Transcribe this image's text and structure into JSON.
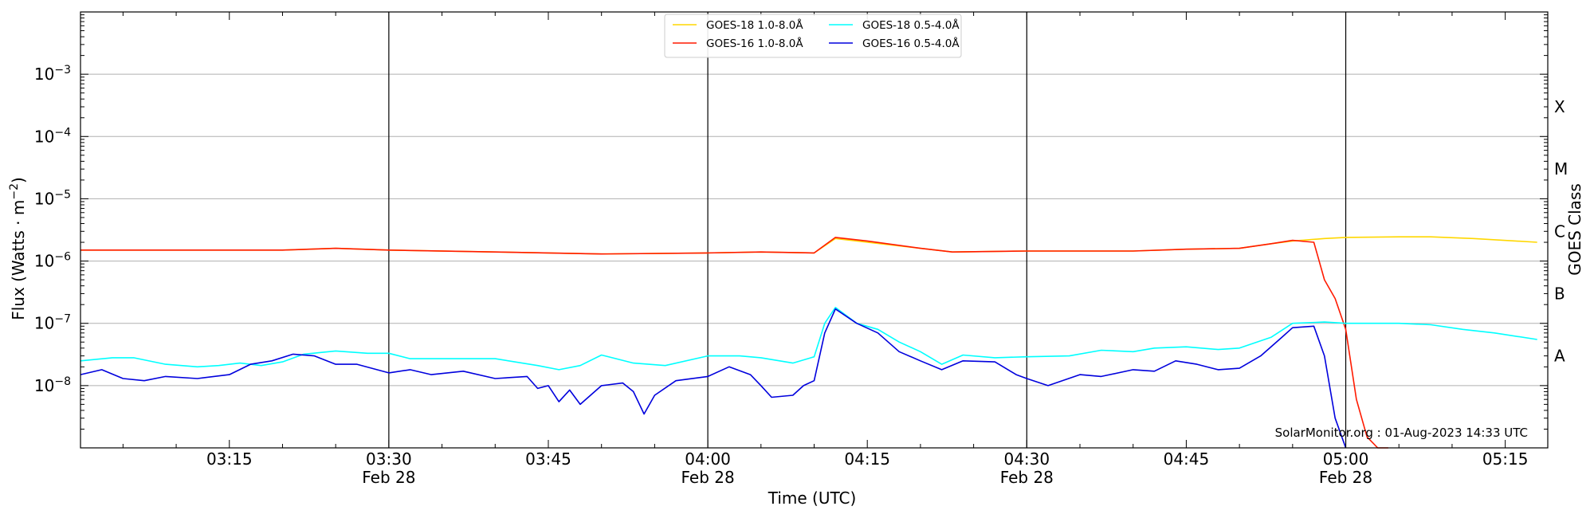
{
  "chart_data": {
    "type": "line",
    "xlabel": "Time (UTC)",
    "ylabel_prefix": "Flux (Watts · m",
    "ylabel_exp": "−2",
    "ylabel_suffix": ")",
    "right_label": "GOES Class",
    "watermark": "SolarMonitor.org : 01-Aug-2023 14:33 UTC",
    "yscale": "log",
    "ylim": [
      1e-09,
      0.01
    ],
    "xlim": [
      "03:01",
      "05:19"
    ],
    "y_ticks": [
      {
        "exp": -8,
        "label_base": "10",
        "label_exp": "−8"
      },
      {
        "exp": -7,
        "label_base": "10",
        "label_exp": "−7"
      },
      {
        "exp": -6,
        "label_base": "10",
        "label_exp": "−6"
      },
      {
        "exp": -5,
        "label_base": "10",
        "label_exp": "−5"
      },
      {
        "exp": -4,
        "label_base": "10",
        "label_exp": "−4"
      },
      {
        "exp": -3,
        "label_base": "10",
        "label_exp": "−3"
      }
    ],
    "x_ticks": [
      {
        "time": "03:15",
        "label": "03:15",
        "sub": ""
      },
      {
        "time": "03:30",
        "label": "03:30",
        "sub": "Feb 28"
      },
      {
        "time": "03:45",
        "label": "03:45",
        "sub": ""
      },
      {
        "time": "04:00",
        "label": "04:00",
        "sub": "Feb 28"
      },
      {
        "time": "04:15",
        "label": "04:15",
        "sub": ""
      },
      {
        "time": "04:30",
        "label": "04:30",
        "sub": "Feb 28"
      },
      {
        "time": "04:45",
        "label": "04:45",
        "sub": ""
      },
      {
        "time": "05:00",
        "label": "05:00",
        "sub": "Feb 28"
      },
      {
        "time": "05:15",
        "label": "05:15",
        "sub": ""
      }
    ],
    "vertical_lines": [
      "03:30",
      "04:00",
      "04:30",
      "05:00"
    ],
    "classes": [
      {
        "label": "A",
        "flux": 3e-08
      },
      {
        "label": "B",
        "flux": 3e-07
      },
      {
        "label": "C",
        "flux": 3e-06
      },
      {
        "label": "M",
        "flux": 3e-05
      },
      {
        "label": "X",
        "flux": 0.0003
      }
    ],
    "grid": "horizontal",
    "legend_position": "top-center",
    "series": [
      {
        "name": "GOES-18 1.0-8.0Å",
        "color": "#ffd700",
        "points": [
          [
            "03:01",
            1.5e-06
          ],
          [
            "03:10",
            1.5e-06
          ],
          [
            "03:20",
            1.5e-06
          ],
          [
            "03:25",
            1.6e-06
          ],
          [
            "03:30",
            1.5e-06
          ],
          [
            "03:40",
            1.4e-06
          ],
          [
            "03:50",
            1.3e-06
          ],
          [
            "04:00",
            1.35e-06
          ],
          [
            "04:05",
            1.4e-06
          ],
          [
            "04:10",
            1.35e-06
          ],
          [
            "04:12",
            2.3e-06
          ],
          [
            "04:15",
            2e-06
          ],
          [
            "04:20",
            1.6e-06
          ],
          [
            "04:23",
            1.4e-06
          ],
          [
            "04:30",
            1.45e-06
          ],
          [
            "04:40",
            1.45e-06
          ],
          [
            "04:45",
            1.55e-06
          ],
          [
            "04:50",
            1.6e-06
          ],
          [
            "04:53",
            1.9e-06
          ],
          [
            "04:55",
            2.1e-06
          ],
          [
            "04:58",
            2.3e-06
          ],
          [
            "05:00",
            2.4e-06
          ],
          [
            "05:05",
            2.45e-06
          ],
          [
            "05:08",
            2.45e-06
          ],
          [
            "05:12",
            2.3e-06
          ],
          [
            "05:18",
            2e-06
          ]
        ]
      },
      {
        "name": "GOES-16 1.0-8.0Å",
        "color": "#ff1a00",
        "points": [
          [
            "03:01",
            1.5e-06
          ],
          [
            "03:10",
            1.5e-06
          ],
          [
            "03:20",
            1.5e-06
          ],
          [
            "03:25",
            1.6e-06
          ],
          [
            "03:30",
            1.5e-06
          ],
          [
            "03:40",
            1.4e-06
          ],
          [
            "03:50",
            1.3e-06
          ],
          [
            "04:00",
            1.35e-06
          ],
          [
            "04:05",
            1.4e-06
          ],
          [
            "04:10",
            1.35e-06
          ],
          [
            "04:12",
            2.4e-06
          ],
          [
            "04:15",
            2.1e-06
          ],
          [
            "04:20",
            1.6e-06
          ],
          [
            "04:23",
            1.4e-06
          ],
          [
            "04:30",
            1.45e-06
          ],
          [
            "04:40",
            1.45e-06
          ],
          [
            "04:45",
            1.55e-06
          ],
          [
            "04:50",
            1.6e-06
          ],
          [
            "04:53",
            1.9e-06
          ],
          [
            "04:55",
            2.15e-06
          ],
          [
            "04:57",
            2e-06
          ],
          [
            "04:58",
            5e-07
          ],
          [
            "04:59",
            2.5e-07
          ],
          [
            "05:00",
            8e-08
          ],
          [
            "05:01",
            6e-09
          ],
          [
            "05:02",
            1.5e-09
          ],
          [
            "05:03",
            1e-09
          ],
          [
            "05:04",
            1e-09
          ]
        ]
      },
      {
        "name": "GOES-18 0.5-4.0Å",
        "color": "#00ffff",
        "points": [
          [
            "03:01",
            2.5e-08
          ],
          [
            "03:04",
            2.8e-08
          ],
          [
            "03:06",
            2.8e-08
          ],
          [
            "03:09",
            2.2e-08
          ],
          [
            "03:12",
            2e-08
          ],
          [
            "03:14",
            2.1e-08
          ],
          [
            "03:16",
            2.3e-08
          ],
          [
            "03:18",
            2.1e-08
          ],
          [
            "03:20",
            2.4e-08
          ],
          [
            "03:22",
            3.2e-08
          ],
          [
            "03:25",
            3.6e-08
          ],
          [
            "03:28",
            3.3e-08
          ],
          [
            "03:30",
            3.3e-08
          ],
          [
            "03:32",
            2.7e-08
          ],
          [
            "03:36",
            2.7e-08
          ],
          [
            "03:40",
            2.7e-08
          ],
          [
            "03:44",
            2.1e-08
          ],
          [
            "03:46",
            1.8e-08
          ],
          [
            "03:48",
            2.1e-08
          ],
          [
            "03:50",
            3.1e-08
          ],
          [
            "03:53",
            2.3e-08
          ],
          [
            "03:56",
            2.1e-08
          ],
          [
            "04:00",
            3e-08
          ],
          [
            "04:03",
            3e-08
          ],
          [
            "04:05",
            2.8e-08
          ],
          [
            "04:08",
            2.3e-08
          ],
          [
            "04:10",
            2.9e-08
          ],
          [
            "04:11",
            1e-07
          ],
          [
            "04:12",
            1.8e-07
          ],
          [
            "04:14",
            1e-07
          ],
          [
            "04:16",
            8e-08
          ],
          [
            "04:18",
            5e-08
          ],
          [
            "04:20",
            3.5e-08
          ],
          [
            "04:22",
            2.2e-08
          ],
          [
            "04:24",
            3.1e-08
          ],
          [
            "04:27",
            2.8e-08
          ],
          [
            "04:30",
            2.9e-08
          ],
          [
            "04:34",
            3e-08
          ],
          [
            "04:37",
            3.7e-08
          ],
          [
            "04:40",
            3.5e-08
          ],
          [
            "04:42",
            4e-08
          ],
          [
            "04:45",
            4.2e-08
          ],
          [
            "04:48",
            3.8e-08
          ],
          [
            "04:50",
            4e-08
          ],
          [
            "04:53",
            6e-08
          ],
          [
            "04:55",
            1e-07
          ],
          [
            "04:58",
            1.05e-07
          ],
          [
            "05:00",
            1e-07
          ],
          [
            "05:05",
            1e-07
          ],
          [
            "05:08",
            9.5e-08
          ],
          [
            "05:11",
            8e-08
          ],
          [
            "05:14",
            7e-08
          ],
          [
            "05:18",
            5.5e-08
          ]
        ]
      },
      {
        "name": "GOES-16 0.5-4.0Å",
        "color": "#0000dd",
        "points": [
          [
            "03:01",
            1.5e-08
          ],
          [
            "03:03",
            1.8e-08
          ],
          [
            "03:05",
            1.3e-08
          ],
          [
            "03:07",
            1.2e-08
          ],
          [
            "03:09",
            1.4e-08
          ],
          [
            "03:12",
            1.3e-08
          ],
          [
            "03:15",
            1.5e-08
          ],
          [
            "03:17",
            2.2e-08
          ],
          [
            "03:19",
            2.5e-08
          ],
          [
            "03:21",
            3.2e-08
          ],
          [
            "03:23",
            3e-08
          ],
          [
            "03:25",
            2.2e-08
          ],
          [
            "03:27",
            2.2e-08
          ],
          [
            "03:30",
            1.6e-08
          ],
          [
            "03:32",
            1.8e-08
          ],
          [
            "03:34",
            1.5e-08
          ],
          [
            "03:37",
            1.7e-08
          ],
          [
            "03:40",
            1.3e-08
          ],
          [
            "03:43",
            1.4e-08
          ],
          [
            "03:44",
            9e-09
          ],
          [
            "03:45",
            1e-08
          ],
          [
            "03:46",
            5.5e-09
          ],
          [
            "03:47",
            8.5e-09
          ],
          [
            "03:48",
            5e-09
          ],
          [
            "03:50",
            1e-08
          ],
          [
            "03:52",
            1.1e-08
          ],
          [
            "03:53",
            8e-09
          ],
          [
            "03:54",
            3.5e-09
          ],
          [
            "03:55",
            7e-09
          ],
          [
            "03:57",
            1.2e-08
          ],
          [
            "04:00",
            1.4e-08
          ],
          [
            "04:02",
            2e-08
          ],
          [
            "04:04",
            1.5e-08
          ],
          [
            "04:05",
            1e-08
          ],
          [
            "04:06",
            6.5e-09
          ],
          [
            "04:08",
            7e-09
          ],
          [
            "04:09",
            1e-08
          ],
          [
            "04:10",
            1.2e-08
          ],
          [
            "04:11",
            7e-08
          ],
          [
            "04:12",
            1.7e-07
          ],
          [
            "04:14",
            1e-07
          ],
          [
            "04:16",
            7e-08
          ],
          [
            "04:18",
            3.5e-08
          ],
          [
            "04:20",
            2.5e-08
          ],
          [
            "04:22",
            1.8e-08
          ],
          [
            "04:24",
            2.5e-08
          ],
          [
            "04:27",
            2.4e-08
          ],
          [
            "04:29",
            1.5e-08
          ],
          [
            "04:30",
            1.3e-08
          ],
          [
            "04:32",
            1e-08
          ],
          [
            "04:35",
            1.5e-08
          ],
          [
            "04:37",
            1.4e-08
          ],
          [
            "04:40",
            1.8e-08
          ],
          [
            "04:42",
            1.7e-08
          ],
          [
            "04:44",
            2.5e-08
          ],
          [
            "04:46",
            2.2e-08
          ],
          [
            "04:48",
            1.8e-08
          ],
          [
            "04:50",
            1.9e-08
          ],
          [
            "04:52",
            3e-08
          ],
          [
            "04:54",
            6e-08
          ],
          [
            "04:55",
            8.5e-08
          ],
          [
            "04:57",
            9e-08
          ],
          [
            "04:58",
            3e-08
          ],
          [
            "04:59",
            3e-09
          ],
          [
            "05:00",
            1e-09
          ]
        ]
      }
    ]
  }
}
